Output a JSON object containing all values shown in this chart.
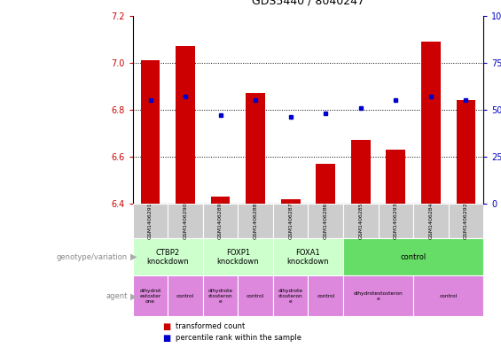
{
  "title": "GDS5440 / 8040247",
  "samples": [
    "GSM1406291",
    "GSM1406290",
    "GSM1406289",
    "GSM1406288",
    "GSM1406287",
    "GSM1406286",
    "GSM1406285",
    "GSM1406293",
    "GSM1406284",
    "GSM1406292"
  ],
  "transformed_count": [
    7.01,
    7.07,
    6.43,
    6.87,
    6.42,
    6.57,
    6.67,
    6.63,
    7.09,
    6.84
  ],
  "percentile_rank": [
    55,
    57,
    47,
    55,
    46,
    48,
    51,
    55,
    57,
    55
  ],
  "ylim_left": [
    6.4,
    7.2
  ],
  "ylim_right": [
    0,
    100
  ],
  "yticks_left": [
    6.4,
    6.6,
    6.8,
    7.0,
    7.2
  ],
  "yticks_right": [
    0,
    25,
    50,
    75,
    100
  ],
  "bar_color": "#cc0000",
  "dot_color": "#0000cc",
  "bar_bottom": 6.4,
  "genotype_groups": [
    {
      "label": "CTBP2\nknockdown",
      "start": 0,
      "end": 2,
      "color": "#ccffcc"
    },
    {
      "label": "FOXP1\nknockdown",
      "start": 2,
      "end": 4,
      "color": "#ccffcc"
    },
    {
      "label": "FOXA1\nknockdown",
      "start": 4,
      "end": 6,
      "color": "#ccffcc"
    },
    {
      "label": "control",
      "start": 6,
      "end": 10,
      "color": "#66dd66"
    }
  ],
  "agent_groups": [
    {
      "label": "dihydrot\nestoster\none",
      "start": 0,
      "end": 1,
      "color": "#dd88dd"
    },
    {
      "label": "control",
      "start": 1,
      "end": 2,
      "color": "#dd88dd"
    },
    {
      "label": "dihydrote\nstosteron\ne",
      "start": 2,
      "end": 3,
      "color": "#dd88dd"
    },
    {
      "label": "control",
      "start": 3,
      "end": 4,
      "color": "#dd88dd"
    },
    {
      "label": "dihydrote\nstosteron\ne",
      "start": 4,
      "end": 5,
      "color": "#dd88dd"
    },
    {
      "label": "control",
      "start": 5,
      "end": 6,
      "color": "#dd88dd"
    },
    {
      "label": "dihydrotestosteron\ne",
      "start": 6,
      "end": 8,
      "color": "#dd88dd"
    },
    {
      "label": "control",
      "start": 8,
      "end": 10,
      "color": "#dd88dd"
    }
  ],
  "left_label_color": "#cc0000",
  "right_label_color": "#0000cc",
  "fig_width": 5.65,
  "fig_height": 3.93
}
